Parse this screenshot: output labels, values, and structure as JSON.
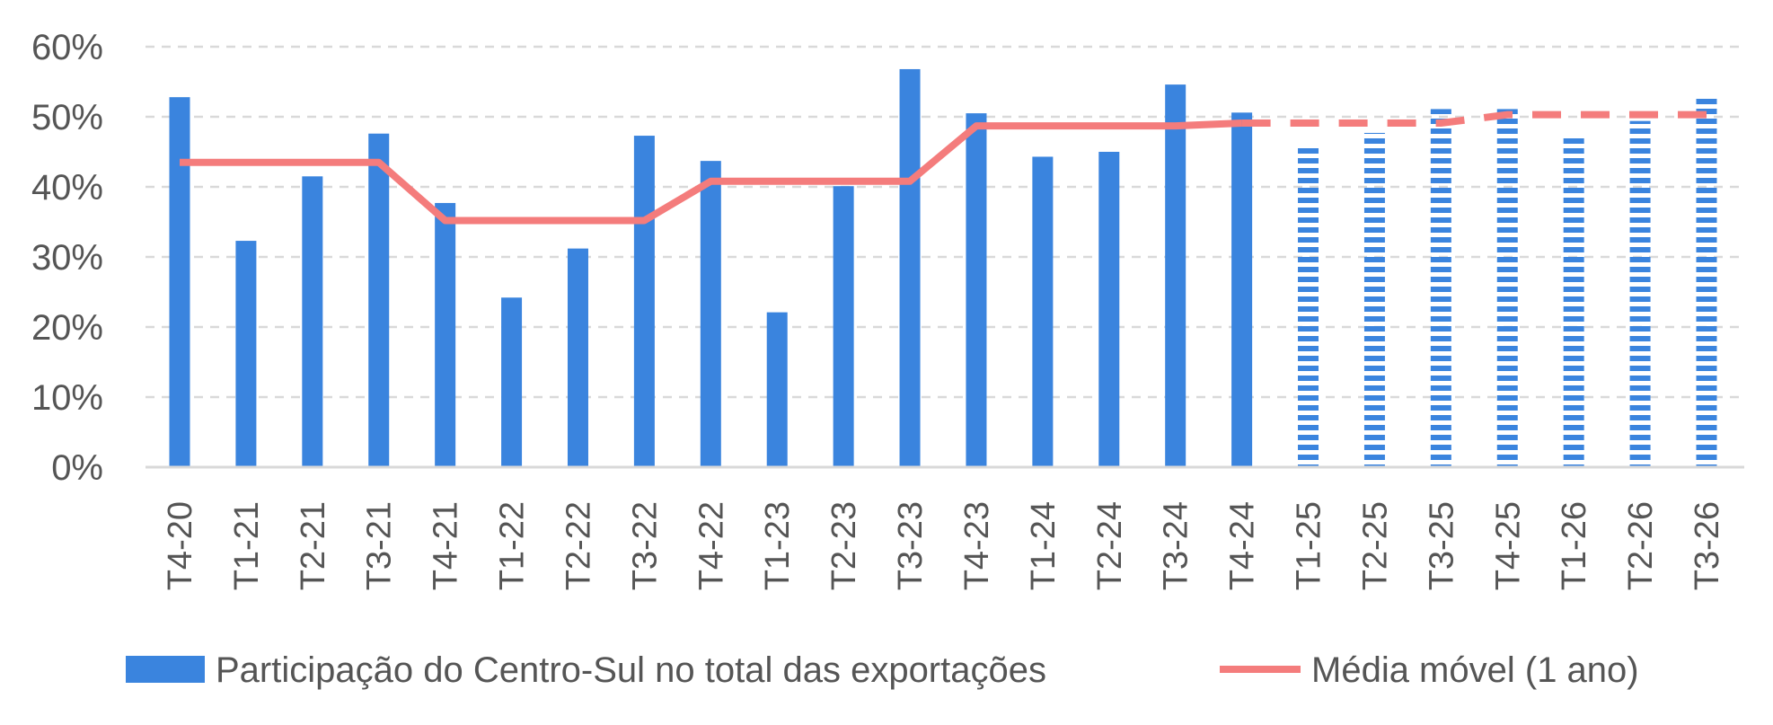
{
  "chart_data": {
    "type": "bar",
    "categories": [
      "T4-20",
      "T1-21",
      "T2-21",
      "T3-21",
      "T4-21",
      "T1-22",
      "T2-22",
      "T3-22",
      "T4-22",
      "T1-23",
      "T2-23",
      "T3-23",
      "T4-23",
      "T1-24",
      "T2-24",
      "T3-24",
      "T4-24",
      "T1-25",
      "T2-25",
      "T3-25",
      "T4-25",
      "T1-26",
      "T2-26",
      "T3-26"
    ],
    "y_ticks": [
      "0%",
      "10%",
      "20%",
      "30%",
      "40%",
      "50%",
      "60%"
    ],
    "ylim": [
      0,
      60
    ],
    "grid": true,
    "legend_position": "bottom",
    "series": [
      {
        "name": "Participação do Centro-Sul no total das exportações",
        "type": "bar",
        "color": "#3A84DE",
        "values": [
          52.8,
          32.3,
          41.5,
          47.6,
          37.7,
          24.2,
          31.2,
          47.3,
          43.7,
          22.1,
          40.1,
          56.8,
          50.5,
          44.3,
          45.0,
          54.6,
          50.6,
          45.9,
          47.7,
          51.1,
          51.1,
          47.3,
          49.4,
          52.6
        ],
        "projected_from_index": 17
      },
      {
        "name": "Média móvel (1 ano)",
        "type": "line",
        "color": "#F47C7C",
        "values": [
          43.5,
          43.5,
          43.5,
          43.5,
          35.2,
          35.2,
          35.2,
          35.2,
          40.8,
          40.8,
          40.8,
          40.8,
          48.7,
          48.7,
          48.7,
          48.7,
          49.1,
          49.1,
          49.1,
          49.1,
          50.3,
          50.3,
          50.3,
          50.3
        ],
        "projected_from_index": 16
      }
    ]
  }
}
